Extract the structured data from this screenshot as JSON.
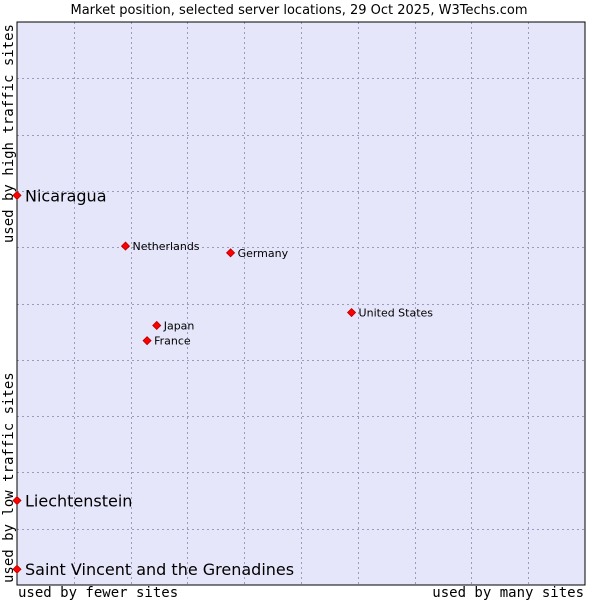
{
  "chart_data": {
    "type": "scatter",
    "title": "Market position, selected server locations, 29 Oct 2025, W3Techs.com",
    "xlabel_low": "used by fewer sites",
    "xlabel_high": "used by many sites",
    "ylabel_low": "used by low traffic sites",
    "ylabel_high": "used by high traffic sites",
    "xlim": [
      0,
      100
    ],
    "ylim": [
      0,
      100
    ],
    "grid": true,
    "colors": {
      "plot_bg": "#e6e6fa",
      "grid": "#9b9bbb",
      "frame": "#000000",
      "marker": "#ff0000",
      "marker_edge": "#b00000"
    },
    "points": [
      {
        "label": "Nicaragua",
        "x": 0,
        "y": 69.2,
        "highlight": true
      },
      {
        "label": "Liechtenstein",
        "x": 0,
        "y": 15.0,
        "highlight": true
      },
      {
        "label": "Saint Vincent and the Grenadines",
        "x": 0,
        "y": 2.8,
        "highlight": true
      },
      {
        "label": "Netherlands",
        "x": 19.1,
        "y": 60.2,
        "highlight": false
      },
      {
        "label": "Germany",
        "x": 37.6,
        "y": 59.0,
        "highlight": false
      },
      {
        "label": "United States",
        "x": 58.9,
        "y": 48.4,
        "highlight": false
      },
      {
        "label": "Japan",
        "x": 24.6,
        "y": 46.1,
        "highlight": false
      },
      {
        "label": "France",
        "x": 22.9,
        "y": 43.4,
        "highlight": false
      }
    ]
  }
}
